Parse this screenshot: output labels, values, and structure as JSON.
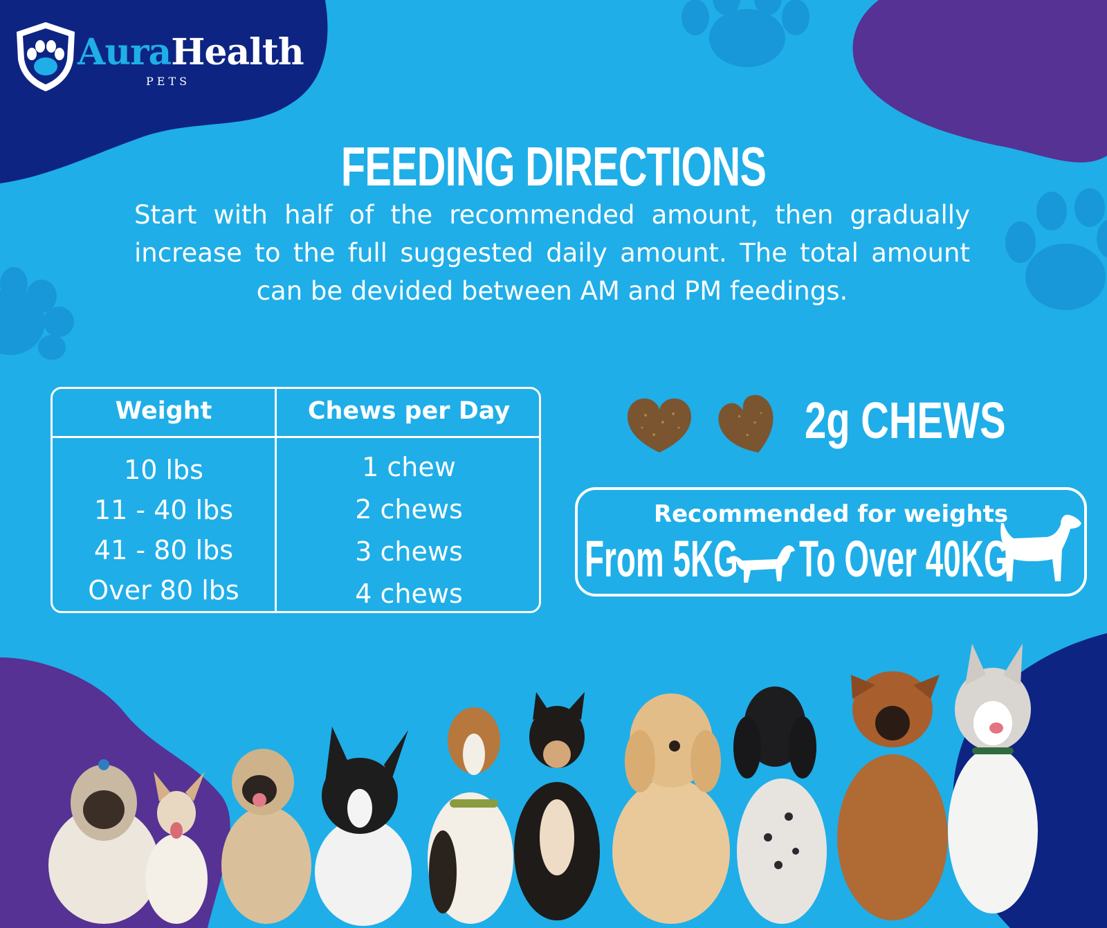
{
  "brand": {
    "name_part1": "Aura",
    "name_part2": "Health",
    "subtitle": "PETS"
  },
  "heading": {
    "title": "FEEDING DIRECTIONS",
    "intro": "Start with half of the recommended amount, then gradually increase to the full suggested daily amount. The total amount can be devided between AM and PM feedings."
  },
  "dosage_table": {
    "headers": [
      "Weight",
      "Chews per Day"
    ],
    "rows": [
      {
        "weight": "10 lbs",
        "chews": "1 chew"
      },
      {
        "weight": "11 - 40 lbs",
        "chews": "2 chews"
      },
      {
        "weight": "41 - 80 lbs",
        "chews": "3 chews"
      },
      {
        "weight": "Over 80 lbs",
        "chews": "4 chews"
      }
    ]
  },
  "chews": {
    "label": "2g CHEWS"
  },
  "recommendation": {
    "title": "Recommended for weights",
    "from_text": "From 5KG",
    "to_text": "To Over 40KG"
  },
  "colors": {
    "background": "#1faee8",
    "dark_navy": "#0d2483",
    "purple": "#553293",
    "text": "#ffffff",
    "chew_brown": "#7a5530"
  },
  "icons": [
    "shield-paw-logo-icon",
    "paw-print-icon",
    "heart-chew-icon",
    "dachshund-silhouette-icon",
    "hound-silhouette-icon"
  ]
}
